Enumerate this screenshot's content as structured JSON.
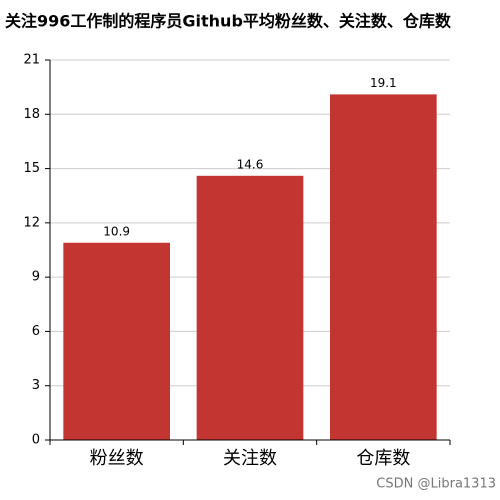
{
  "chart_data": {
    "type": "bar",
    "title": "关注996工作制的程序员Github平均粉丝数、关注数、仓库数",
    "categories": [
      "粉丝数",
      "关注数",
      "仓库数"
    ],
    "values": [
      10.9,
      14.6,
      19.1
    ],
    "color": "#c23531",
    "ylim": [
      0,
      21
    ],
    "yticks": [
      0,
      3,
      6,
      9,
      12,
      15,
      18,
      21
    ],
    "grid": true,
    "watermark": "CSDN @Libra1313"
  }
}
